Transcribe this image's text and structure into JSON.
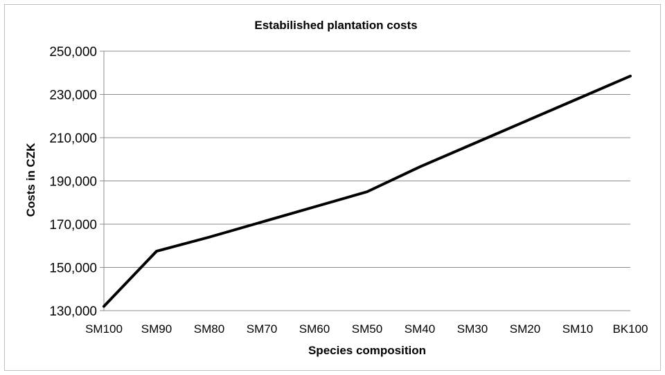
{
  "chart_data": {
    "type": "line",
    "title": "Estabilished plantation costs",
    "xlabel": "Species composition",
    "ylabel": "Costs in CZK",
    "categories": [
      "SM100",
      "SM90",
      "SM80",
      "SM70",
      "SM60",
      "SM50",
      "SM40",
      "SM30",
      "SM20",
      "SM10",
      "BK100"
    ],
    "series": [
      {
        "values": [
          132000,
          157500,
          164000,
          171000,
          178000,
          185000,
          196500,
          207000,
          217500,
          228000,
          238500
        ],
        "color": "#000000"
      }
    ],
    "ylim": [
      130000,
      250000
    ],
    "yticks": [
      130000,
      150000,
      170000,
      190000,
      210000,
      230000,
      250000
    ],
    "ytick_labels": [
      "130,000",
      "150,000",
      "170,000",
      "190,000",
      "210,000",
      "230,000",
      "250,000"
    ],
    "grid": true,
    "legend": "none"
  }
}
